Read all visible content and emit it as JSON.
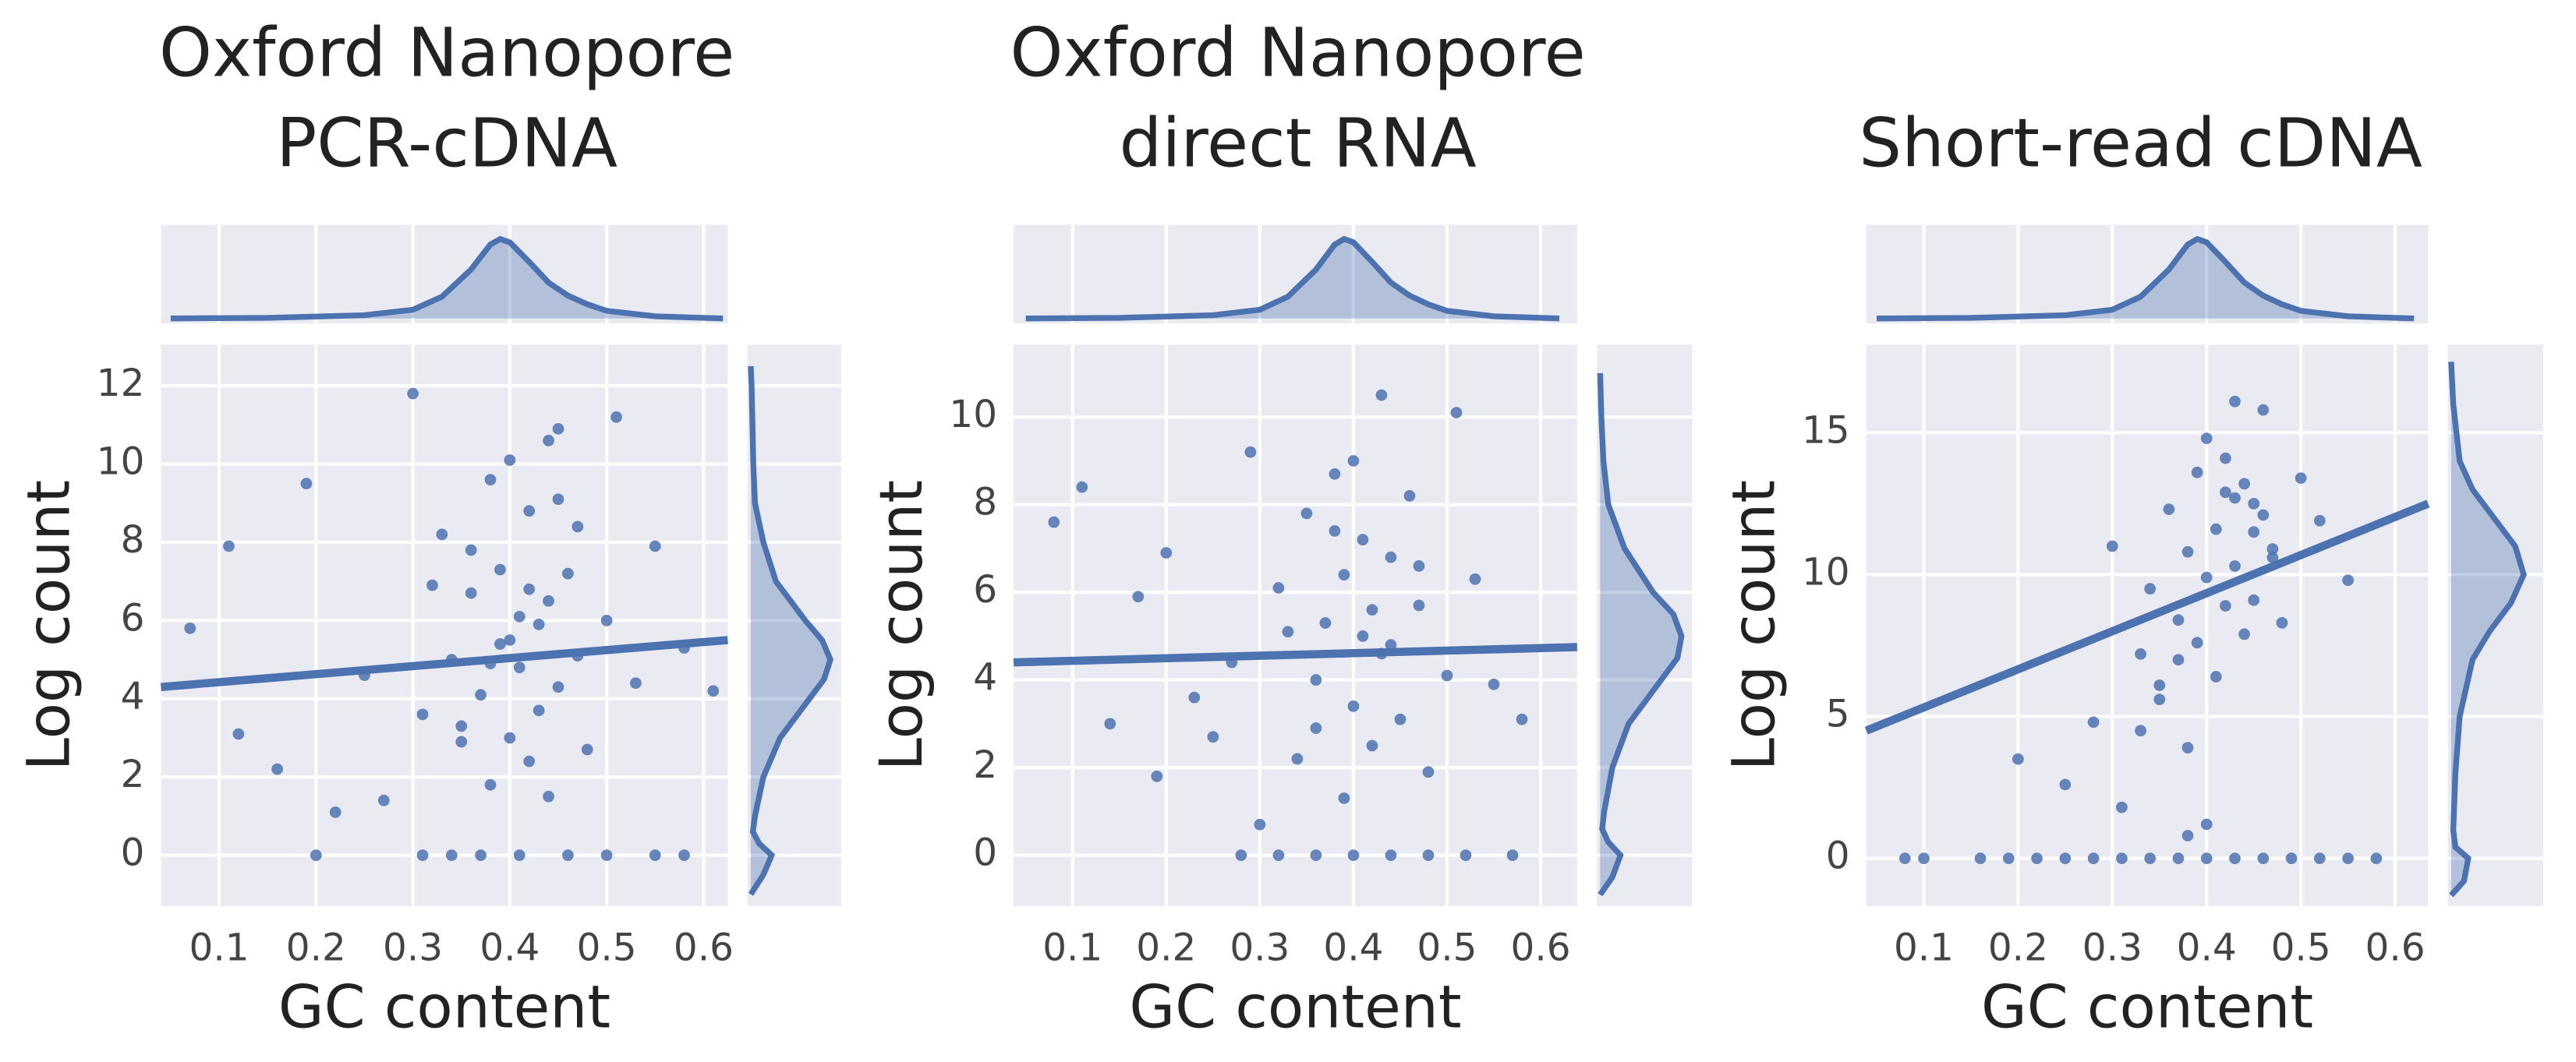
{
  "chart_data": [
    {
      "type": "scatter",
      "title": [
        "Oxford Nanopore",
        "PCR-cDNA"
      ],
      "x_label": "GC content",
      "y_label": "Log count",
      "color": "#4c72b0",
      "grid": true,
      "xlim": [
        0.04,
        0.625
      ],
      "xticks": [
        0.1,
        0.2,
        0.3,
        0.4,
        0.5,
        0.6
      ],
      "ylim": [
        -1.3,
        13.05
      ],
      "yticks": [
        0,
        2,
        4,
        6,
        8,
        10,
        12
      ],
      "x": [
        0.07,
        0.11,
        0.12,
        0.16,
        0.19,
        0.2,
        0.22,
        0.25,
        0.27,
        0.3,
        0.31,
        0.33,
        0.34,
        0.35,
        0.36,
        0.37,
        0.38,
        0.38,
        0.39,
        0.39,
        0.4,
        0.4,
        0.41,
        0.41,
        0.42,
        0.42,
        0.43,
        0.43,
        0.44,
        0.44,
        0.45,
        0.45,
        0.46,
        0.47,
        0.48,
        0.5,
        0.51,
        0.53,
        0.55,
        0.58,
        0.61,
        0.32,
        0.36,
        0.4,
        0.44,
        0.47,
        0.35,
        0.42,
        0.38,
        0.45,
        0.31,
        0.34,
        0.37,
        0.41,
        0.46,
        0.5,
        0.55,
        0.58
      ],
      "y": [
        5.8,
        7.9,
        3.1,
        2.2,
        9.5,
        0.0,
        1.1,
        4.6,
        1.4,
        11.8,
        3.6,
        8.2,
        5.0,
        2.9,
        6.7,
        4.1,
        9.6,
        1.8,
        5.4,
        7.3,
        3.0,
        10.1,
        6.1,
        4.8,
        2.4,
        8.8,
        5.9,
        3.7,
        10.6,
        6.5,
        4.3,
        9.1,
        7.2,
        5.1,
        2.7,
        6.0,
        11.2,
        4.4,
        7.9,
        5.3,
        4.2,
        6.9,
        7.8,
        5.5,
        1.5,
        8.4,
        3.3,
        6.8,
        4.9,
        10.9,
        0,
        0,
        0,
        0,
        0,
        0,
        0,
        0
      ],
      "regression": {
        "x": [
          0.04,
          0.625
        ],
        "y": [
          4.3,
          5.5
        ]
      },
      "x_kde": {
        "x": [
          0.05,
          0.15,
          0.25,
          0.3,
          0.33,
          0.36,
          0.38,
          0.39,
          0.4,
          0.42,
          0.44,
          0.46,
          0.48,
          0.5,
          0.55,
          0.6,
          0.62
        ],
        "density": [
          0,
          0.05,
          0.3,
          0.8,
          2,
          4.5,
          6.8,
          7.3,
          7.0,
          5.2,
          3.3,
          2.1,
          1.3,
          0.7,
          0.2,
          0.05,
          0
        ],
        "lim": [
          0,
          8
        ]
      },
      "y_kde": {
        "y": [
          -1.0,
          -0.5,
          0,
          0.3,
          0.6,
          1,
          2,
          3,
          4,
          4.5,
          5,
          5.5,
          6,
          7,
          8,
          9,
          10,
          12,
          12.5
        ],
        "density": [
          0,
          0.03,
          0.05,
          0.02,
          0.005,
          0.01,
          0.03,
          0.07,
          0.14,
          0.175,
          0.19,
          0.17,
          0.13,
          0.06,
          0.03,
          0.01,
          0.006,
          0.002,
          0
        ],
        "lim": [
          0,
          0.2
        ]
      }
    },
    {
      "type": "scatter",
      "title": [
        "Oxford Nanopore",
        "direct RNA"
      ],
      "x_label": "GC content",
      "y_label": "Log count",
      "color": "#4c72b0",
      "grid": true,
      "xlim": [
        0.037,
        0.639
      ],
      "xticks": [
        0.1,
        0.2,
        0.3,
        0.4,
        0.5,
        0.6
      ],
      "ylim": [
        -1.16,
        11.65
      ],
      "yticks": [
        0,
        2,
        4,
        6,
        8,
        10
      ],
      "x": [
        0.08,
        0.11,
        0.14,
        0.17,
        0.19,
        0.2,
        0.23,
        0.25,
        0.27,
        0.29,
        0.3,
        0.32,
        0.34,
        0.35,
        0.36,
        0.37,
        0.38,
        0.39,
        0.39,
        0.4,
        0.4,
        0.41,
        0.41,
        0.42,
        0.43,
        0.43,
        0.44,
        0.45,
        0.46,
        0.47,
        0.48,
        0.5,
        0.51,
        0.53,
        0.55,
        0.58,
        0.36,
        0.42,
        0.38,
        0.44,
        0.33,
        0.47,
        0.28,
        0.32,
        0.36,
        0.4,
        0.44,
        0.48,
        0.52,
        0.57
      ],
      "y": [
        7.6,
        8.4,
        3.0,
        5.9,
        1.8,
        6.9,
        3.6,
        2.7,
        4.4,
        9.2,
        0.7,
        6.1,
        2.2,
        7.8,
        4.0,
        5.3,
        8.7,
        1.3,
        6.4,
        3.4,
        9.0,
        5.0,
        7.2,
        2.5,
        10.5,
        4.6,
        6.8,
        3.1,
        8.2,
        5.7,
        1.9,
        4.1,
        10.1,
        6.3,
        3.9,
        3.1,
        2.9,
        5.6,
        7.4,
        4.8,
        5.1,
        6.6,
        0,
        0,
        0,
        0,
        0,
        0,
        0,
        0
      ],
      "regression": {
        "x": [
          0.037,
          0.639
        ],
        "y": [
          4.4,
          4.75
        ]
      },
      "x_kde": {
        "x": [
          0.05,
          0.15,
          0.25,
          0.3,
          0.33,
          0.36,
          0.38,
          0.39,
          0.4,
          0.42,
          0.44,
          0.46,
          0.48,
          0.5,
          0.55,
          0.6,
          0.62
        ],
        "density": [
          0,
          0.05,
          0.3,
          0.8,
          2,
          4.5,
          6.8,
          7.3,
          7.0,
          5.2,
          3.3,
          2.1,
          1.3,
          0.7,
          0.2,
          0.05,
          0
        ],
        "lim": [
          0,
          8
        ]
      },
      "y_kde": {
        "y": [
          -0.9,
          -0.5,
          0,
          0.3,
          0.6,
          1,
          2,
          3,
          4,
          4.5,
          5,
          5.5,
          6,
          7,
          8,
          9,
          10,
          11
        ],
        "density": [
          0,
          0.03,
          0.05,
          0.02,
          0.005,
          0.01,
          0.03,
          0.07,
          0.15,
          0.19,
          0.2,
          0.18,
          0.13,
          0.06,
          0.02,
          0.008,
          0.003,
          0
        ],
        "lim": [
          0,
          0.21
        ]
      }
    },
    {
      "type": "scatter",
      "title": [
        "Short-read cDNA"
      ],
      "x_label": "GC content",
      "y_label": "Log count",
      "color": "#4c72b0",
      "grid": true,
      "xlim": [
        0.039,
        0.635
      ],
      "xticks": [
        0.1,
        0.2,
        0.3,
        0.4,
        0.5,
        0.6
      ],
      "ylim": [
        -1.68,
        18.1
      ],
      "yticks": [
        0,
        5,
        10,
        15
      ],
      "x": [
        0.2,
        0.25,
        0.28,
        0.3,
        0.31,
        0.33,
        0.34,
        0.35,
        0.36,
        0.37,
        0.38,
        0.38,
        0.39,
        0.39,
        0.4,
        0.4,
        0.41,
        0.41,
        0.42,
        0.42,
        0.43,
        0.43,
        0.44,
        0.44,
        0.45,
        0.45,
        0.46,
        0.46,
        0.47,
        0.48,
        0.5,
        0.52,
        0.55,
        0.35,
        0.4,
        0.45,
        0.38,
        0.42,
        0.33,
        0.47,
        0.37,
        0.43,
        0.08,
        0.1,
        0.16,
        0.19,
        0.22,
        0.25,
        0.28,
        0.31,
        0.34,
        0.37,
        0.4,
        0.43,
        0.46,
        0.49,
        0.52,
        0.55,
        0.58
      ],
      "y": [
        3.5,
        2.6,
        4.8,
        11.0,
        1.8,
        7.2,
        9.5,
        5.6,
        12.3,
        8.4,
        10.8,
        3.9,
        13.6,
        7.6,
        9.9,
        14.8,
        6.4,
        11.6,
        8.9,
        12.9,
        10.3,
        16.1,
        7.9,
        13.2,
        11.5,
        9.1,
        15.8,
        12.1,
        10.6,
        8.3,
        13.4,
        11.9,
        9.8,
        6.1,
        1.2,
        12.5,
        0.8,
        14.1,
        4.5,
        10.9,
        7.0,
        12.7,
        0,
        0,
        0,
        0,
        0,
        0,
        0,
        0,
        0,
        0,
        0,
        0,
        0,
        0,
        0,
        0,
        0
      ],
      "regression": {
        "x": [
          0.039,
          0.635
        ],
        "y": [
          4.5,
          12.5
        ]
      },
      "x_kde": {
        "x": [
          0.05,
          0.15,
          0.25,
          0.3,
          0.33,
          0.36,
          0.38,
          0.39,
          0.4,
          0.42,
          0.44,
          0.46,
          0.48,
          0.5,
          0.55,
          0.6,
          0.62
        ],
        "density": [
          0,
          0.05,
          0.3,
          0.8,
          2,
          4.5,
          6.8,
          7.3,
          7.0,
          5.2,
          3.3,
          2.1,
          1.3,
          0.7,
          0.2,
          0.05,
          0
        ],
        "lim": [
          0,
          8
        ]
      },
      "y_kde": {
        "y": [
          -1.3,
          -0.8,
          0,
          0.4,
          1,
          3,
          5,
          7,
          8,
          9,
          10,
          11,
          12,
          13,
          14,
          16,
          17.5
        ],
        "density": [
          0,
          0.03,
          0.04,
          0.01,
          0.005,
          0.01,
          0.02,
          0.05,
          0.09,
          0.14,
          0.17,
          0.15,
          0.1,
          0.05,
          0.02,
          0.005,
          0
        ],
        "lim": [
          0,
          0.2
        ]
      }
    }
  ]
}
